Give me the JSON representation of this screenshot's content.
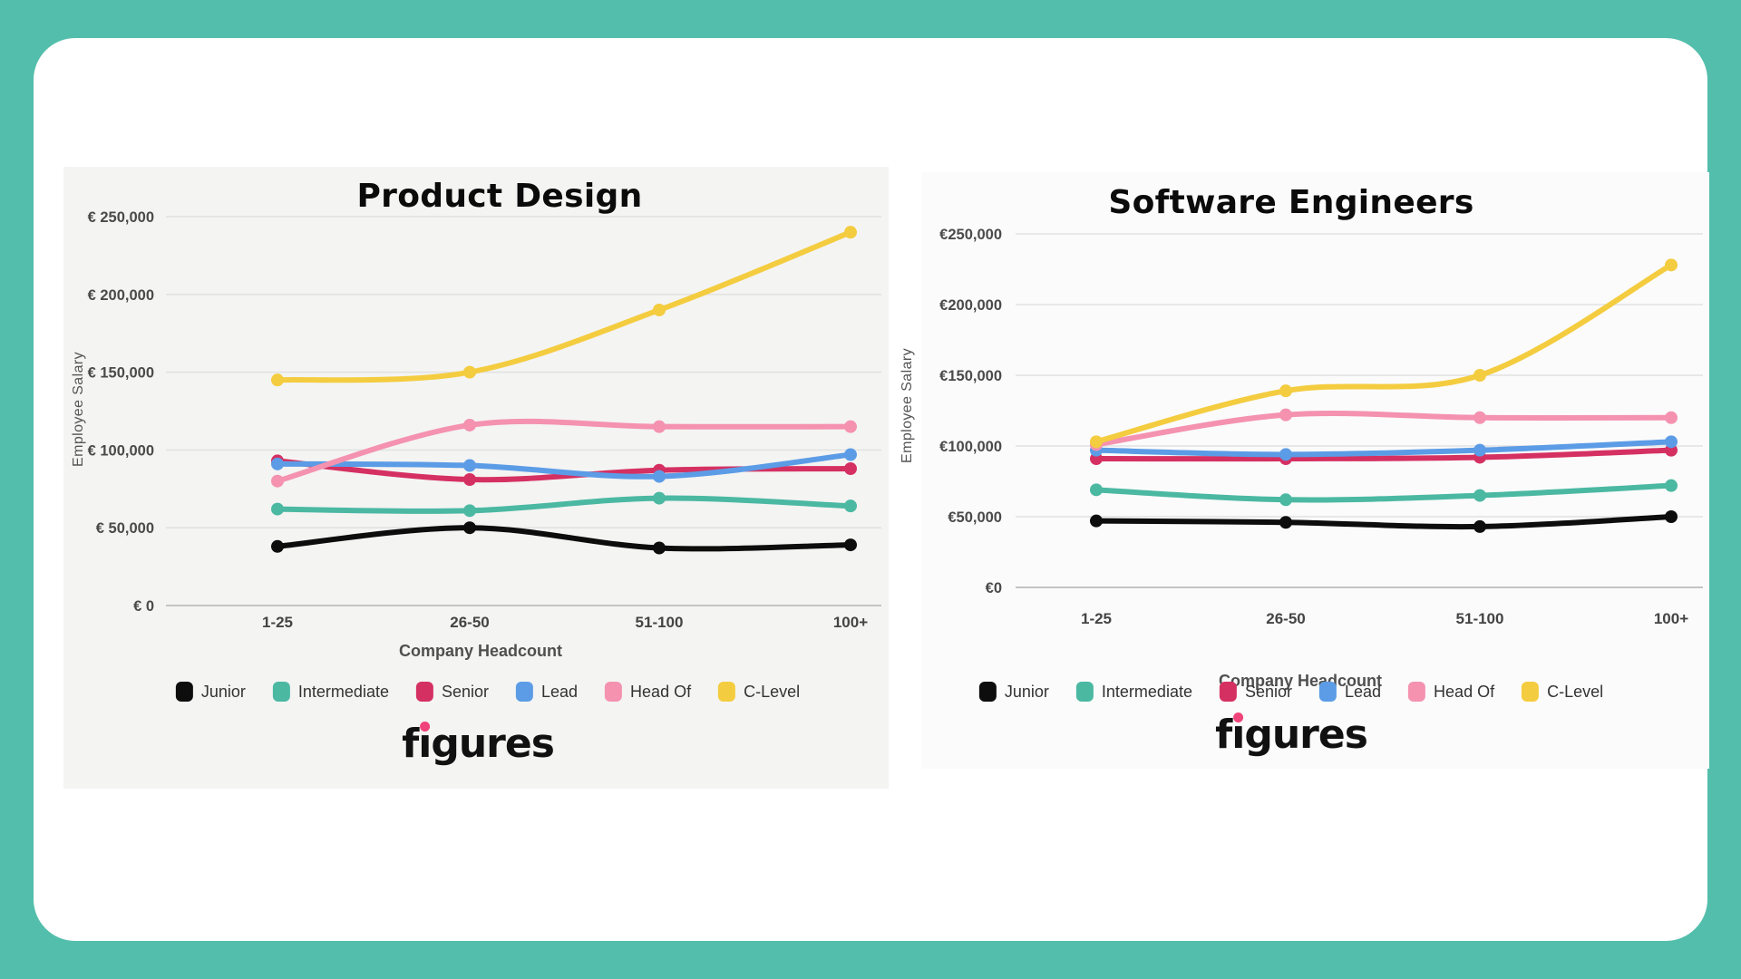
{
  "page": {
    "background_color": "#53beab",
    "card_color": "#ffffff",
    "left_panel_color": "#f4f4f3",
    "right_panel_color": "#fbfbfb",
    "logo_text": "figures",
    "logo_dot_color": "#f0437a"
  },
  "chart_data": [
    {
      "type": "line",
      "title": "Product Design",
      "xlabel": "Company Headcount",
      "ylabel": "Employee Salary",
      "categories": [
        "1-25",
        "26-50",
        "51-100",
        "100+"
      ],
      "ylim": [
        0,
        250000
      ],
      "grid": true,
      "legend_position": "bottom",
      "y_ticks": [
        {
          "value": 250000,
          "label": "€ 250,000"
        },
        {
          "value": 200000,
          "label": "€ 200,000"
        },
        {
          "value": 150000,
          "label": "€ 150,000"
        },
        {
          "value": 100000,
          "label": "€ 100,000"
        },
        {
          "value": 50000,
          "label": "€ 50,000"
        },
        {
          "value": 0,
          "label": "€ 0"
        }
      ],
      "series": [
        {
          "name": "Junior",
          "color": "#0d0d0d",
          "values": [
            38000,
            50000,
            37000,
            39000
          ]
        },
        {
          "name": "Intermediate",
          "color": "#4bb8a2",
          "values": [
            62000,
            61000,
            69000,
            64000
          ]
        },
        {
          "name": "Senior",
          "color": "#d53062",
          "values": [
            93000,
            81000,
            87000,
            88000
          ]
        },
        {
          "name": "Lead",
          "color": "#5c9ce6",
          "values": [
            91000,
            90000,
            83000,
            97000
          ]
        },
        {
          "name": "Head Of",
          "color": "#f492b0",
          "values": [
            80000,
            116000,
            115000,
            115000
          ]
        },
        {
          "name": "C-Level",
          "color": "#f4cc3f",
          "values": [
            145000,
            150000,
            190000,
            240000
          ]
        }
      ]
    },
    {
      "type": "line",
      "title": "Software Engineers",
      "xlabel": "Company Headcount",
      "ylabel": "Employee Salary",
      "categories": [
        "1-25",
        "26-50",
        "51-100",
        "100+"
      ],
      "ylim": [
        0,
        250000
      ],
      "grid": true,
      "legend_position": "bottom",
      "y_ticks": [
        {
          "value": 250000,
          "label": "€250,000"
        },
        {
          "value": 200000,
          "label": "€200,000"
        },
        {
          "value": 150000,
          "label": "€150,000"
        },
        {
          "value": 100000,
          "label": "€100,000"
        },
        {
          "value": 50000,
          "label": "€50,000"
        },
        {
          "value": 0,
          "label": "€0"
        }
      ],
      "series": [
        {
          "name": "Junior",
          "color": "#0d0d0d",
          "values": [
            47000,
            46000,
            43000,
            50000
          ]
        },
        {
          "name": "Intermediate",
          "color": "#4bb8a2",
          "values": [
            69000,
            62000,
            65000,
            72000
          ]
        },
        {
          "name": "Senior",
          "color": "#d53062",
          "values": [
            91000,
            91000,
            92000,
            97000
          ]
        },
        {
          "name": "Lead",
          "color": "#5c9ce6",
          "values": [
            97000,
            94000,
            97000,
            103000
          ]
        },
        {
          "name": "Head Of",
          "color": "#f492b0",
          "values": [
            101000,
            122000,
            120000,
            120000
          ]
        },
        {
          "name": "C-Level",
          "color": "#f4cc3f",
          "values": [
            103000,
            139000,
            150000,
            228000
          ]
        }
      ]
    }
  ]
}
